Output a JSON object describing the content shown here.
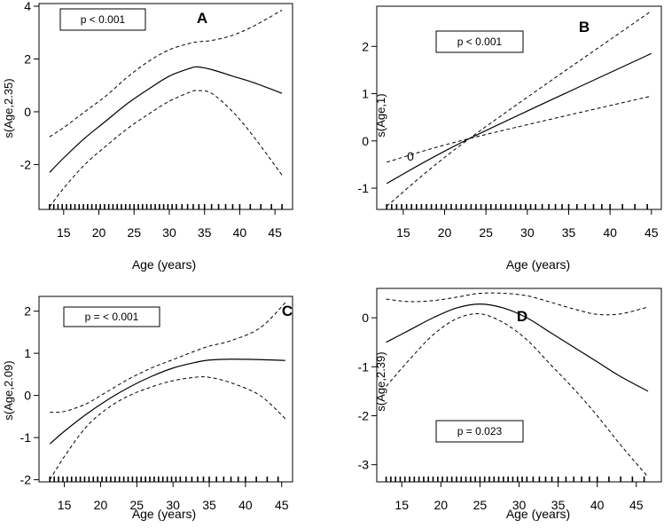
{
  "chart_data": [
    {
      "type": "line",
      "panel": "A",
      "title": "A",
      "xlabel": "Age (years)",
      "ylabel": "s(Age,2.35)",
      "annotation": "p < 0.001",
      "xlim": [
        11.5,
        47.5
      ],
      "ylim": [
        -3.7,
        4.1
      ],
      "xticks": [
        15,
        20,
        25,
        30,
        35,
        40,
        45
      ],
      "yticks": [
        -2,
        0,
        2,
        4
      ],
      "x": [
        13,
        15,
        18,
        21,
        24,
        27,
        30,
        33,
        34,
        36,
        39,
        42,
        46
      ],
      "series": [
        {
          "name": "estimate",
          "style": "solid",
          "values": [
            -2.3,
            -1.75,
            -1.0,
            -0.35,
            0.3,
            0.85,
            1.35,
            1.65,
            1.7,
            1.6,
            1.35,
            1.1,
            0.7
          ]
        },
        {
          "name": "upper",
          "style": "dashed",
          "values": [
            -0.95,
            -0.6,
            0.0,
            0.6,
            1.3,
            1.9,
            2.35,
            2.6,
            2.65,
            2.7,
            2.9,
            3.25,
            3.85
          ]
        },
        {
          "name": "lower",
          "style": "dashed",
          "values": [
            -3.6,
            -2.9,
            -2.0,
            -1.3,
            -0.65,
            -0.1,
            0.4,
            0.75,
            0.8,
            0.7,
            0.0,
            -0.95,
            -2.4
          ]
        }
      ],
      "rug": [
        13.0,
        13.6,
        14.2,
        14.8,
        15.4,
        16.0,
        16.6,
        17.2,
        17.8,
        18.4,
        19.0,
        19.6,
        20.2,
        20.8,
        21.4,
        22.0,
        22.6,
        23.2,
        23.8,
        24.4,
        25.0,
        25.6,
        26.2,
        26.8,
        27.4,
        28.0,
        28.6,
        29.2,
        29.8,
        30.4,
        31.0,
        31.8,
        32.6,
        33.4,
        34.2,
        35.0,
        36.0,
        37.0,
        38.0,
        39.0,
        40.0,
        41.5,
        43.0,
        44.5,
        46.0
      ]
    },
    {
      "type": "line",
      "panel": "B",
      "title": "B",
      "xlabel": "Age (years)",
      "ylabel": "s(Age,1)",
      "annotation": "p < 0.001",
      "extra_label": "0",
      "xlim": [
        11.8,
        46.2
      ],
      "ylim": [
        -1.45,
        2.85
      ],
      "xticks": [
        15,
        20,
        25,
        30,
        35,
        40,
        45
      ],
      "yticks": [
        -1,
        0,
        1,
        2
      ],
      "x": [
        13,
        23,
        45
      ],
      "series": [
        {
          "name": "estimate",
          "style": "solid",
          "values": [
            -0.9,
            0.05,
            1.85
          ]
        },
        {
          "name": "upper",
          "style": "dashed",
          "values": [
            -0.45,
            0.05,
            0.95
          ]
        },
        {
          "name": "lower",
          "style": "dashed",
          "values": [
            -1.38,
            0.05,
            2.75
          ]
        }
      ],
      "rug": [
        13.0,
        13.6,
        14.2,
        14.8,
        15.4,
        16.0,
        16.6,
        17.2,
        17.8,
        18.4,
        19.0,
        19.6,
        20.2,
        20.8,
        21.4,
        22.0,
        22.6,
        23.2,
        23.8,
        24.4,
        25.0,
        25.6,
        26.2,
        26.8,
        27.4,
        28.0,
        28.6,
        29.2,
        29.8,
        30.4,
        31.0,
        31.8,
        32.6,
        33.4,
        34.2,
        35.0,
        36.0,
        37.0,
        38.0,
        39.0,
        40.0,
        41.5,
        43.0,
        44.5
      ]
    },
    {
      "type": "line",
      "panel": "C",
      "title": "C",
      "xlabel": "Age (years)",
      "ylabel": "s(Age,2.09)",
      "annotation": "p = < 0.001",
      "xlim": [
        11.5,
        46.5
      ],
      "ylim": [
        -2.05,
        2.35
      ],
      "xticks": [
        15,
        20,
        25,
        30,
        35,
        40,
        45
      ],
      "yticks": [
        -2,
        -1,
        0,
        1,
        2
      ],
      "x": [
        13,
        15,
        18,
        21,
        24,
        27,
        30,
        33,
        35,
        38,
        42,
        45.5
      ],
      "series": [
        {
          "name": "estimate",
          "style": "solid",
          "values": [
            -1.15,
            -0.85,
            -0.45,
            -0.1,
            0.2,
            0.45,
            0.65,
            0.78,
            0.84,
            0.86,
            0.85,
            0.83
          ]
        },
        {
          "name": "upper",
          "style": "dashed",
          "values": [
            -0.4,
            -0.38,
            -0.2,
            0.1,
            0.4,
            0.65,
            0.85,
            1.05,
            1.17,
            1.3,
            1.6,
            2.2
          ]
        },
        {
          "name": "lower",
          "style": "dashed",
          "values": [
            -2.0,
            -1.45,
            -0.75,
            -0.3,
            0.0,
            0.2,
            0.35,
            0.43,
            0.43,
            0.3,
            0.0,
            -0.55
          ]
        }
      ],
      "rug": [
        13.0,
        13.6,
        14.2,
        14.8,
        15.4,
        16.0,
        16.6,
        17.2,
        17.8,
        18.4,
        19.0,
        19.6,
        20.2,
        20.8,
        21.4,
        22.0,
        22.6,
        23.2,
        23.8,
        24.4,
        25.0,
        25.6,
        26.2,
        26.8,
        27.4,
        28.0,
        28.6,
        29.2,
        29.8,
        30.4,
        31.0,
        31.8,
        32.6,
        33.4,
        34.2,
        35.0,
        36.0,
        37.0,
        38.0,
        39.0,
        40.0,
        41.5,
        43.0,
        44.5
      ]
    },
    {
      "type": "line",
      "panel": "D",
      "title": "D",
      "xlabel": "Age (years)",
      "ylabel": "s(Age,2.39)",
      "annotation": "p = 0.023",
      "xlim": [
        11.8,
        48.2
      ],
      "ylim": [
        -3.35,
        0.6
      ],
      "xticks": [
        15,
        20,
        25,
        30,
        35,
        40,
        45
      ],
      "yticks": [
        -3,
        -2,
        -1,
        0
      ],
      "x": [
        13,
        16,
        19,
        22,
        25,
        28,
        31,
        34,
        37,
        40,
        43,
        46.5
      ],
      "series": [
        {
          "name": "estimate",
          "style": "solid",
          "values": [
            -0.5,
            -0.25,
            0.0,
            0.2,
            0.28,
            0.2,
            0.0,
            -0.3,
            -0.6,
            -0.9,
            -1.2,
            -1.5
          ]
        },
        {
          "name": "upper",
          "style": "dashed",
          "values": [
            0.38,
            0.33,
            0.35,
            0.42,
            0.5,
            0.5,
            0.45,
            0.32,
            0.18,
            0.07,
            0.08,
            0.22
          ]
        },
        {
          "name": "lower",
          "style": "dashed",
          "values": [
            -1.4,
            -0.85,
            -0.35,
            -0.02,
            0.08,
            -0.1,
            -0.45,
            -0.95,
            -1.45,
            -2.0,
            -2.6,
            -3.25
          ]
        }
      ],
      "rug": [
        13.0,
        13.6,
        14.2,
        14.8,
        15.4,
        16.0,
        16.6,
        17.2,
        17.8,
        18.4,
        19.0,
        19.6,
        20.2,
        20.8,
        21.4,
        22.0,
        22.6,
        23.2,
        23.8,
        24.4,
        25.0,
        25.6,
        26.2,
        26.8,
        27.4,
        28.0,
        28.6,
        29.2,
        29.8,
        30.4,
        31.0,
        31.8,
        32.6,
        33.4,
        34.2,
        35.0,
        36.0,
        37.0,
        38.0,
        39.0,
        40.0,
        41.5,
        43.0,
        44.5,
        46.0
      ]
    }
  ]
}
